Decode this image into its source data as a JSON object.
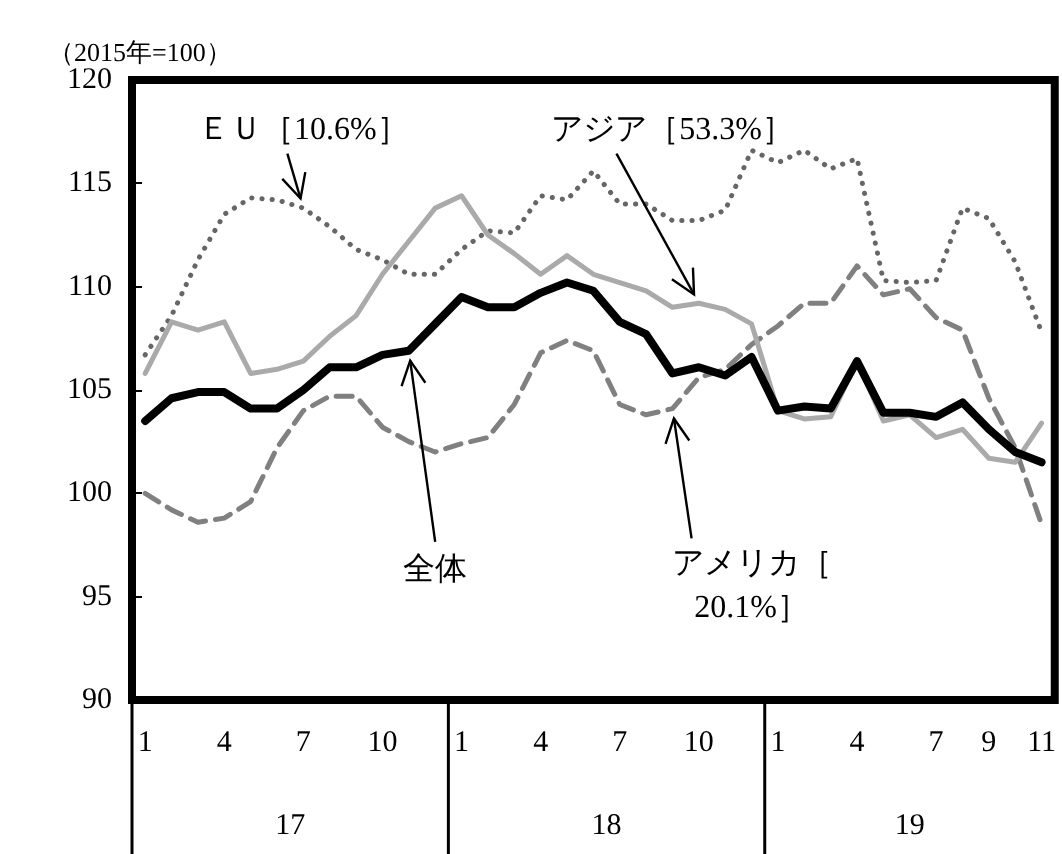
{
  "chart_data": {
    "type": "line",
    "ylabel": "（2015年=100）",
    "categories": [
      "1",
      null,
      null,
      "4",
      null,
      null,
      "7",
      null,
      null,
      "10",
      null,
      null,
      "1",
      null,
      null,
      "4",
      null,
      null,
      "7",
      null,
      null,
      "10",
      null,
      null,
      "1",
      null,
      null,
      "4",
      null,
      null,
      "7",
      null,
      "9",
      null,
      "11"
    ],
    "annotations": [
      "17",
      "18",
      "19"
    ],
    "ylim": [
      90,
      120
    ],
    "yticks": [
      90,
      95,
      100,
      105,
      110,
      115,
      120
    ],
    "grid": false,
    "legend": false,
    "series": [
      {
        "name": "全体",
        "color": "#000000",
        "line_style": "solid",
        "values": [
          103.5,
          104.6,
          104.9,
          104.9,
          104.1,
          104.1,
          105.0,
          106.1,
          106.1,
          106.7,
          106.9,
          108.2,
          109.5,
          109.0,
          109.0,
          109.7,
          110.2,
          109.8,
          108.3,
          107.7,
          105.8,
          106.1,
          105.7,
          106.6,
          104.0,
          104.2,
          104.1,
          106.4,
          103.9,
          103.9,
          103.7,
          104.4,
          103.1,
          102.0,
          101.5
        ]
      },
      {
        "name": "アジア［53.3%］",
        "color": "#aaaaaa",
        "line_style": "solid",
        "values": [
          105.8,
          108.3,
          107.9,
          108.3,
          105.8,
          106.0,
          106.4,
          107.6,
          108.6,
          110.6,
          112.2,
          113.8,
          114.4,
          112.5,
          111.6,
          110.6,
          111.5,
          110.6,
          110.2,
          109.8,
          109.0,
          109.2,
          108.9,
          108.2,
          104.0,
          103.6,
          103.7,
          106.4,
          103.5,
          103.8,
          102.7,
          103.1,
          101.7,
          101.5,
          103.4
        ]
      },
      {
        "name": "ＥＵ［10.6%］",
        "color": "#666666",
        "line_style": "dotted",
        "values": [
          106.7,
          108.6,
          111.3,
          113.5,
          114.3,
          114.2,
          113.8,
          112.9,
          111.8,
          111.3,
          110.6,
          110.6,
          111.8,
          112.7,
          112.6,
          114.4,
          114.2,
          115.6,
          114.0,
          114.0,
          113.2,
          113.2,
          113.7,
          116.6,
          116.0,
          116.6,
          115.7,
          116.2,
          110.3,
          110.2,
          110.3,
          113.8,
          113.3,
          111.2,
          107.8
        ]
      },
      {
        "name": "アメリカ［20.1%］",
        "color": "#808080",
        "line_style": "dashed",
        "values": [
          100.0,
          99.2,
          98.6,
          98.8,
          99.6,
          102.2,
          104.0,
          104.7,
          104.7,
          103.2,
          102.5,
          102.0,
          102.4,
          102.7,
          104.3,
          106.8,
          107.4,
          106.9,
          104.3,
          103.8,
          104.1,
          105.6,
          106.0,
          107.2,
          108.1,
          109.2,
          109.2,
          111.0,
          109.6,
          109.9,
          108.5,
          107.9,
          104.6,
          102.2,
          98.5
        ]
      }
    ]
  }
}
